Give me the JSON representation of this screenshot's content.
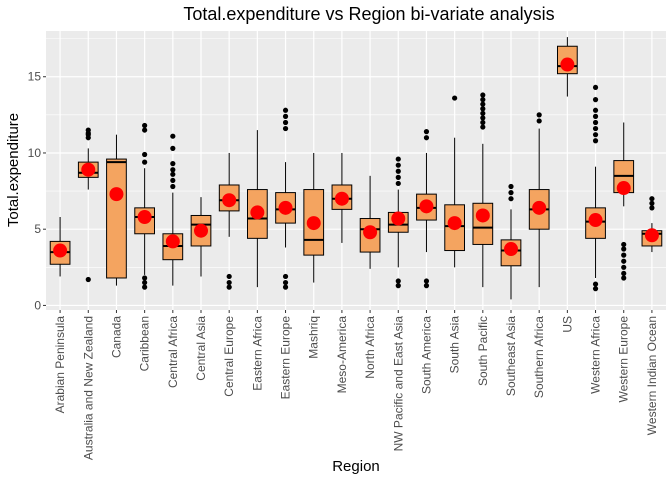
{
  "chart_data": {
    "type": "boxplot",
    "title": "Total.expenditure vs Region bi-variate analysis",
    "xlabel": "Region",
    "ylabel": "Total.expenditure",
    "ylim": [
      -0.3,
      18
    ],
    "yticks": [
      0,
      5,
      10,
      15
    ],
    "grid": true,
    "legend": "none",
    "colors": {
      "box_fill": "#F4A460",
      "box_line": "#000000",
      "mean_marker": "#FF0000",
      "panel": "#EBEBEB",
      "grid": "#FFFFFF",
      "outlier": "#000000"
    },
    "categories": [
      "Arabian Peninsula",
      "Australia and New Zealand",
      "Canada",
      "Caribbean",
      "Central Africa",
      "Central Asia",
      "Central Europe",
      "Eastern Africa",
      "Eastern Europe",
      "Mashriq",
      "Meso-America",
      "North Africa",
      "NW Pacific and East Asia",
      "South America",
      "South Asia",
      "South Pacific",
      "Southeast Asia",
      "Southern Africa",
      "US",
      "Western Africa",
      "Western Europe",
      "Western Indian Ocean"
    ],
    "boxes": [
      {
        "category": "Arabian Peninsula",
        "whisker_low": 1.9,
        "q1": 2.7,
        "median": 3.5,
        "q3": 4.2,
        "whisker_high": 5.8,
        "mean": 3.6,
        "outliers": []
      },
      {
        "category": "Australia and New Zealand",
        "whisker_low": 7.6,
        "q1": 8.4,
        "median": 8.7,
        "q3": 9.4,
        "whisker_high": 10.3,
        "mean": 8.9,
        "outliers": [
          1.7,
          11.0,
          11.2,
          11.3,
          11.5
        ]
      },
      {
        "category": "Canada",
        "whisker_low": 1.3,
        "q1": 1.8,
        "median": 9.4,
        "q3": 9.6,
        "whisker_high": 11.2,
        "mean": 7.3,
        "outliers": []
      },
      {
        "category": "Caribbean",
        "whisker_low": 2.0,
        "q1": 4.7,
        "median": 5.8,
        "q3": 6.4,
        "whisker_high": 9.0,
        "mean": 5.8,
        "outliers": [
          1.2,
          1.5,
          1.8,
          9.4,
          9.9,
          11.5,
          11.8
        ]
      },
      {
        "category": "Central Africa",
        "whisker_low": 1.3,
        "q1": 3.0,
        "median": 3.9,
        "q3": 4.7,
        "whisker_high": 7.4,
        "mean": 4.2,
        "outliers": [
          7.8,
          8.2,
          8.6,
          8.9,
          9.3,
          10.3,
          11.1
        ]
      },
      {
        "category": "Central Asia",
        "whisker_low": 1.9,
        "q1": 3.9,
        "median": 5.3,
        "q3": 5.9,
        "whisker_high": 7.1,
        "mean": 4.9,
        "outliers": []
      },
      {
        "category": "Central Europe",
        "whisker_low": 4.5,
        "q1": 6.2,
        "median": 6.9,
        "q3": 7.9,
        "whisker_high": 10.0,
        "mean": 6.9,
        "outliers": [
          1.2,
          1.5,
          1.9
        ]
      },
      {
        "category": "Eastern Africa",
        "whisker_low": 1.2,
        "q1": 4.4,
        "median": 5.7,
        "q3": 7.6,
        "whisker_high": 11.5,
        "mean": 6.1,
        "outliers": []
      },
      {
        "category": "Eastern Europe",
        "whisker_low": 3.8,
        "q1": 5.4,
        "median": 6.3,
        "q3": 7.4,
        "whisker_high": 9.4,
        "mean": 6.4,
        "outliers": [
          1.2,
          1.5,
          1.9,
          11.6,
          12.0,
          12.4,
          12.8
        ]
      },
      {
        "category": "Mashriq",
        "whisker_low": 1.5,
        "q1": 3.3,
        "median": 4.3,
        "q3": 7.6,
        "whisker_high": 10.0,
        "mean": 5.4,
        "outliers": []
      },
      {
        "category": "Meso-America",
        "whisker_low": 4.1,
        "q1": 6.3,
        "median": 7.0,
        "q3": 7.9,
        "whisker_high": 10.0,
        "mean": 7.0,
        "outliers": []
      },
      {
        "category": "North Africa",
        "whisker_low": 2.4,
        "q1": 3.5,
        "median": 5.0,
        "q3": 5.7,
        "whisker_high": 8.5,
        "mean": 4.8,
        "outliers": []
      },
      {
        "category": "NW Pacific and East Asia",
        "whisker_low": 2.5,
        "q1": 4.8,
        "median": 5.3,
        "q3": 6.1,
        "whisker_high": 7.6,
        "mean": 5.7,
        "outliers": [
          1.3,
          1.6,
          8.0,
          8.4,
          8.8,
          9.2,
          9.6
        ]
      },
      {
        "category": "South America",
        "whisker_low": 3.5,
        "q1": 5.6,
        "median": 6.4,
        "q3": 7.3,
        "whisker_high": 10.0,
        "mean": 6.5,
        "outliers": [
          1.3,
          1.6,
          11.0,
          11.4
        ]
      },
      {
        "category": "South Asia",
        "whisker_low": 2.5,
        "q1": 3.6,
        "median": 5.2,
        "q3": 6.6,
        "whisker_high": 11.0,
        "mean": 5.4,
        "outliers": [
          13.6
        ]
      },
      {
        "category": "South Pacific",
        "whisker_low": 1.2,
        "q1": 4.0,
        "median": 5.1,
        "q3": 6.7,
        "whisker_high": 10.6,
        "mean": 5.9,
        "outliers": [
          11.7,
          12.0,
          12.3,
          12.6,
          12.9,
          13.2,
          13.5,
          13.8
        ]
      },
      {
        "category": "Southeast Asia",
        "whisker_low": 0.4,
        "q1": 2.6,
        "median": 3.6,
        "q3": 4.3,
        "whisker_high": 6.3,
        "mean": 3.7,
        "outliers": [
          7.0,
          7.4,
          7.8
        ]
      },
      {
        "category": "Southern Africa",
        "whisker_low": 1.2,
        "q1": 5.0,
        "median": 6.3,
        "q3": 7.6,
        "whisker_high": 11.6,
        "mean": 6.4,
        "outliers": [
          12.1,
          12.5
        ]
      },
      {
        "category": "US",
        "whisker_low": 13.7,
        "q1": 15.2,
        "median": 15.7,
        "q3": 17.0,
        "whisker_high": 17.6,
        "mean": 15.8,
        "outliers": []
      },
      {
        "category": "Western Africa",
        "whisker_low": 1.8,
        "q1": 4.4,
        "median": 5.5,
        "q3": 6.4,
        "whisker_high": 9.1,
        "mean": 5.6,
        "outliers": [
          1.1,
          1.4,
          10.8,
          11.2,
          11.6,
          12.0,
          12.4,
          12.8,
          13.5,
          14.3
        ]
      },
      {
        "category": "Western Europe",
        "whisker_low": 6.5,
        "q1": 7.4,
        "median": 8.5,
        "q3": 9.5,
        "whisker_high": 12.0,
        "mean": 7.7,
        "outliers": [
          1.8,
          2.1,
          2.5,
          2.9,
          3.3,
          3.7,
          4.0
        ]
      },
      {
        "category": "Western Indian Ocean",
        "whisker_low": 3.5,
        "q1": 3.9,
        "median": 4.7,
        "q3": 4.9,
        "whisker_high": 5.4,
        "mean": 4.6,
        "outliers": [
          6.4,
          6.7,
          7.0
        ]
      }
    ]
  }
}
